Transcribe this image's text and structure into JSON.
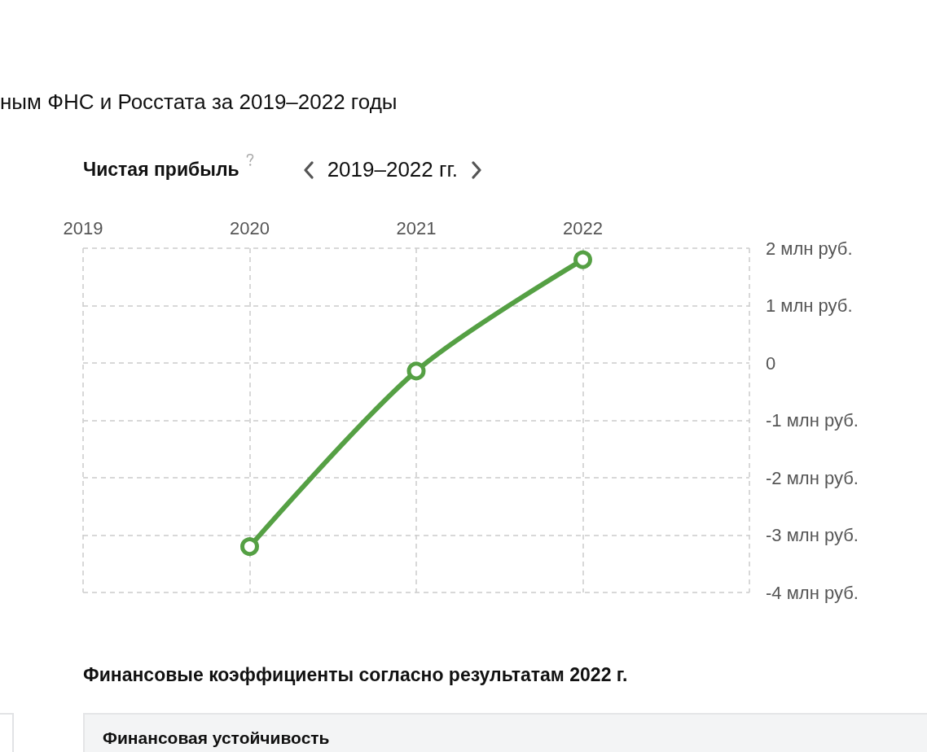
{
  "chart_data": {
    "type": "line",
    "title": "Чистая прибыль",
    "subtitle": "2019–2022 гг.",
    "annotations": [
      "ным ФНС и Росстата за 2019–2022 годы",
      "Финансовые коэффициенты согласно результатам 2022 г.",
      "Финансовая устойчивость"
    ],
    "x": [
      2020,
      2021,
      2022
    ],
    "series": [
      {
        "color": "#55a044",
        "values": [
          -3.2,
          -0.14,
          1.8
        ]
      }
    ],
    "xlim": [
      2019,
      2023
    ],
    "xticks": [
      2019,
      2020,
      2021,
      2022,
      {
        "value": 2023,
        "label": null
      }
    ],
    "ylim": [
      -4,
      2
    ],
    "yticks": [
      {
        "value": -4,
        "label": "-4 млн руб."
      },
      {
        "value": -3,
        "label": "-3 млн руб."
      },
      {
        "value": -2,
        "label": "-2 млн руб."
      },
      {
        "value": -1,
        "label": "-1 млн руб."
      },
      0,
      {
        "value": 1,
        "label": "1 млн руб."
      },
      {
        "value": 2,
        "label": "2 млн руб."
      }
    ],
    "grid": true,
    "marker": "circle",
    "line_style": "solid"
  }
}
